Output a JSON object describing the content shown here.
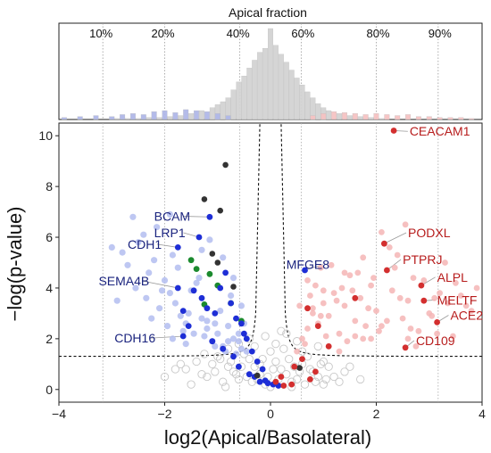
{
  "chart_data": [
    {
      "type": "bar",
      "title": "Apical fraction",
      "percent_labels": [
        {
          "label": "10%",
          "x": -3.17
        },
        {
          "label": "20%",
          "x": -2.0
        },
        {
          "label": "40%",
          "x": -0.58
        },
        {
          "label": "60%",
          "x": 0.58
        },
        {
          "label": "80%",
          "x": 2.0
        },
        {
          "label": "90%",
          "x": 3.17
        }
      ],
      "xlim": [
        -4,
        4
      ],
      "series": [
        {
          "name": "grey",
          "color": "#d3d3d3",
          "x": [
            -2.9,
            -2.7,
            -2.5,
            -2.3,
            -2.1,
            -1.9,
            -1.7,
            -1.5,
            -1.3,
            -1.1,
            -1.0,
            -0.9,
            -0.8,
            -0.7,
            -0.6,
            -0.5,
            -0.4,
            -0.3,
            -0.2,
            -0.1,
            0.0,
            0.1,
            0.2,
            0.3,
            0.4,
            0.5,
            0.6,
            0.7,
            0.8,
            0.9,
            1.0,
            1.1,
            1.3,
            1.5,
            1.7,
            1.9,
            2.1
          ],
          "values": [
            1,
            1,
            1,
            2,
            2,
            3,
            4,
            6,
            9,
            12,
            15,
            18,
            22,
            30,
            38,
            44,
            52,
            60,
            68,
            72,
            92,
            75,
            66,
            58,
            50,
            42,
            35,
            28,
            22,
            16,
            12,
            9,
            6,
            4,
            3,
            2,
            1
          ]
        },
        {
          "name": "blue",
          "color": "#b0b8e8",
          "x": [
            -3.9,
            -3.6,
            -3.3,
            -3.0,
            -2.8,
            -2.6,
            -2.4,
            -2.2,
            -2.0,
            -1.8,
            -1.6,
            -1.4,
            -1.2,
            -1.0,
            -0.8
          ],
          "values": [
            2,
            3,
            4,
            3,
            5,
            6,
            5,
            8,
            9,
            7,
            10,
            9,
            8,
            6,
            4
          ]
        },
        {
          "name": "pink",
          "color": "#f6c3c3",
          "x": [
            0.8,
            1.0,
            1.2,
            1.4,
            1.6,
            1.8,
            2.0,
            2.2,
            2.4,
            2.6,
            2.8,
            3.0,
            3.2,
            3.4,
            3.6,
            3.8
          ],
          "values": [
            4,
            6,
            8,
            7,
            6,
            5,
            6,
            5,
            4,
            5,
            3,
            3,
            2,
            2,
            2,
            1
          ]
        }
      ]
    },
    {
      "type": "scatter",
      "xlabel": "log2(Apical/Basolateral)",
      "ylabel": "−log(p-value)",
      "xlim": [
        -4,
        4
      ],
      "ylim": [
        -0.5,
        10.5
      ],
      "xticks": [
        -4,
        -2,
        0,
        2,
        4
      ],
      "yticks": [
        0,
        2,
        4,
        6,
        8,
        10
      ],
      "threshold_y": 1.3,
      "vlines_x": [
        -3.17,
        -2.0,
        -0.58,
        0.58,
        2.0,
        3.17
      ],
      "labels": [
        {
          "text": "CEACAM1",
          "color": "red",
          "x": 2.63,
          "y": 10.0,
          "px": 2.33,
          "py": 10.2
        },
        {
          "text": "PODXL",
          "color": "red",
          "x": 2.6,
          "y": 6.0,
          "px": 2.15,
          "py": 5.75
        },
        {
          "text": "PTPRJ",
          "color": "red",
          "x": 2.5,
          "y": 4.95,
          "px": 2.2,
          "py": 4.7
        },
        {
          "text": "ALPL",
          "color": "red",
          "x": 3.15,
          "y": 4.25,
          "px": 2.85,
          "py": 4.1
        },
        {
          "text": "MELTF",
          "color": "red",
          "x": 3.15,
          "y": 3.35,
          "px": 2.9,
          "py": 3.5
        },
        {
          "text": "ACE2",
          "color": "red",
          "x": 3.4,
          "y": 2.75,
          "px": 3.15,
          "py": 2.65
        },
        {
          "text": "CD109",
          "color": "red",
          "x": 2.75,
          "y": 1.75,
          "px": 2.55,
          "py": 1.65
        },
        {
          "text": "MFGE8",
          "color": "blue",
          "x": 0.3,
          "y": 4.75,
          "px": 0.65,
          "py": 4.7
        },
        {
          "text": "BCAM",
          "color": "blue",
          "x": -2.2,
          "y": 6.65,
          "px": -1.15,
          "py": 6.8
        },
        {
          "text": "LRP1",
          "color": "blue",
          "x": -2.2,
          "y": 6.0,
          "px": -1.35,
          "py": 6.0
        },
        {
          "text": "CDH1",
          "color": "blue",
          "x": -2.7,
          "y": 5.55,
          "px": -1.75,
          "py": 5.6
        },
        {
          "text": "SEMA4B",
          "color": "blue",
          "x": -3.25,
          "y": 4.1,
          "px": -1.75,
          "py": 4.0
        },
        {
          "text": "CDH16",
          "color": "blue",
          "x": -2.95,
          "y": 1.85,
          "px": -1.65,
          "py": 2.1
        }
      ],
      "series": [
        {
          "name": "red",
          "color": "#d32f2f",
          "x": [
            2.33,
            2.15,
            2.2,
            2.85,
            2.9,
            3.15,
            2.55,
            1.6,
            0.7,
            0.9,
            1.1,
            0.6,
            0.45,
            0.85,
            0.2,
            0.1,
            0.4,
            0.25,
            0.75
          ],
          "y": [
            10.2,
            5.75,
            4.7,
            4.1,
            3.5,
            2.65,
            1.65,
            3.6,
            3.2,
            2.5,
            1.7,
            1.2,
            0.9,
            0.7,
            0.5,
            0.3,
            0.2,
            0.15,
            0.4
          ]
        },
        {
          "name": "blue",
          "color": "#1e2ed6",
          "x": [
            -1.15,
            -1.35,
            -1.75,
            -1.65,
            -1.45,
            -1.3,
            -1.2,
            -1.05,
            -0.95,
            -0.85,
            -0.75,
            -0.65,
            -0.55,
            -0.5,
            -0.45,
            -0.35,
            -0.25,
            -0.15,
            0.65,
            -1.75,
            -1.65,
            -1.55,
            -1.1,
            -0.9,
            -0.7,
            -0.6,
            -0.4,
            -0.3,
            -0.2,
            0.05,
            -0.1,
            0.15,
            -0.05
          ],
          "y": [
            6.8,
            6.0,
            5.6,
            2.1,
            3.9,
            3.6,
            3.2,
            3.0,
            4.0,
            4.6,
            3.4,
            2.8,
            2.6,
            2.2,
            2.0,
            1.5,
            1.1,
            0.8,
            4.7,
            4.0,
            3.1,
            2.5,
            1.9,
            1.6,
            1.3,
            0.9,
            0.6,
            0.5,
            0.3,
            0.2,
            0.35,
            0.15,
            0.25
          ]
        },
        {
          "name": "green",
          "color": "#1b8a2e",
          "x": [
            -1.5,
            -1.4,
            -1.25,
            -1.15,
            -1.0,
            -0.75,
            -0.55
          ],
          "y": [
            5.1,
            4.75,
            3.35,
            4.55,
            4.1,
            3.4,
            2.7
          ]
        },
        {
          "name": "dark-grey",
          "color": "#333333",
          "x": [
            -0.85,
            -1.25,
            -0.95,
            -1.1,
            -1.0,
            -0.7,
            -0.25,
            0.55
          ],
          "y": [
            8.85,
            7.5,
            7.05,
            5.35,
            5.0,
            4.05,
            0.55,
            0.85
          ]
        },
        {
          "name": "light-blue",
          "color": "#b3bdf0",
          "x": [
            -3.0,
            -2.8,
            -2.6,
            -2.5,
            -2.3,
            -2.2,
            -2.0,
            -1.9,
            -1.8,
            -1.7,
            -1.6,
            -1.5,
            -1.4,
            -1.3,
            -1.2,
            -1.1,
            -1.0,
            -0.9,
            -0.8,
            -0.7,
            -0.6,
            -0.55,
            -2.7,
            -2.4,
            -2.1,
            -1.85,
            -1.55,
            -1.35,
            -1.25,
            -0.95,
            -0.85,
            -0.65,
            -2.9,
            -2.55,
            -2.25,
            -1.95,
            -1.65,
            -1.45,
            -1.05,
            -0.75,
            -2.15,
            -1.75,
            -1.15,
            -0.45,
            -0.5,
            -2.35,
            -1.85,
            -1.05,
            -0.6,
            -1.9,
            -2.05,
            -1.6,
            -1.3,
            -0.9,
            -0.7,
            -0.55,
            -1.2,
            -0.8
          ],
          "y": [
            5.6,
            5.4,
            6.8,
            5.8,
            4.6,
            5.1,
            4.3,
            3.8,
            3.4,
            2.9,
            2.6,
            3.9,
            4.2,
            2.8,
            2.4,
            1.9,
            2.2,
            1.7,
            2.5,
            2.0,
            1.9,
            1.6,
            4.9,
            6.1,
            3.2,
            5.3,
            3.0,
            4.4,
            2.1,
            3.1,
            1.5,
            1.4,
            3.5,
            4.0,
            2.8,
            2.5,
            2.3,
            2.2,
            2.6,
            3.7,
            6.4,
            4.8,
            5.9,
            1.5,
            2.6,
            3.6,
            2.0,
            1.7,
            2.2,
            6.9,
            3.9,
            1.8,
            5.5,
            5.2,
            4.4,
            3.3,
            2.7,
            1.9
          ]
        },
        {
          "name": "pink",
          "color": "#f5b5b5",
          "x": [
            0.5,
            0.6,
            0.7,
            0.8,
            0.9,
            1.0,
            1.1,
            1.2,
            1.3,
            1.4,
            1.5,
            1.6,
            1.7,
            1.8,
            1.9,
            2.0,
            2.1,
            2.3,
            2.4,
            2.5,
            2.6,
            2.7,
            2.8,
            3.0,
            3.2,
            3.3,
            3.5,
            3.7,
            3.9,
            0.65,
            0.75,
            0.85,
            0.95,
            1.05,
            1.15,
            1.25,
            1.35,
            1.45,
            1.55,
            1.65,
            1.75,
            1.85,
            1.95,
            2.05,
            2.2,
            2.45,
            2.65,
            3.05,
            3.35,
            3.6,
            0.55,
            1.1,
            1.6,
            2.25,
            2.9,
            3.45,
            0.95,
            1.75,
            2.55,
            3.15,
            1.4,
            2.1,
            0.8,
            1.9,
            2.35,
            3.8,
            2.75,
            1.3,
            0.7,
            2.6,
            3.1,
            1.0
          ],
          "y": [
            1.5,
            2.0,
            2.4,
            3.0,
            2.6,
            3.4,
            2.9,
            3.8,
            2.2,
            3.3,
            4.5,
            2.7,
            3.6,
            2.5,
            4.1,
            3.1,
            6.2,
            3.9,
            5.3,
            2.8,
            3.5,
            4.4,
            2.3,
            3.0,
            3.8,
            5.0,
            4.2,
            3.3,
            4.0,
            1.8,
            3.7,
            4.1,
            4.8,
            2.1,
            4.9,
            3.5,
            4.0,
            1.9,
            3.9,
            4.6,
            2.0,
            3.2,
            4.4,
            2.3,
            2.7,
            3.6,
            2.4,
            2.9,
            3.4,
            3.7,
            3.3,
            1.7,
            2.1,
            5.6,
            4.3,
            2.1,
            2.9,
            5.2,
            6.5,
            2.2,
            4.6,
            2.5,
            3.2,
            2.0,
            4.8,
            3.1,
            1.7,
            1.5,
            4.3,
            2.0,
            3.6,
            3.9
          ]
        },
        {
          "name": "grey",
          "color": "#c8c8c8",
          "x": [
            -1.6,
            -1.4,
            -1.2,
            -1.0,
            -0.8,
            -0.6,
            -0.4,
            -0.2,
            0.0,
            0.2,
            0.4,
            0.6,
            0.8,
            1.0,
            1.2,
            -1.5,
            -1.3,
            -1.1,
            -0.9,
            -0.7,
            -0.5,
            -0.3,
            -0.1,
            0.1,
            0.3,
            0.5,
            0.7,
            0.9,
            1.1,
            1.4,
            -1.7,
            -0.85,
            -0.45,
            -0.15,
            0.15,
            0.45,
            0.85,
            -1.25,
            -0.65,
            -0.35,
            0.05,
            0.35,
            0.65,
            1.05,
            -0.95,
            -0.55,
            -0.25,
            0.25,
            0.55,
            0.95,
            -0.75,
            -0.05,
            0.75,
            1.3,
            -1.05,
            0.4,
            -0.3,
            0.1,
            0.6,
            -0.6,
            -2.0,
            -1.8,
            1.5,
            1.7,
            0.9,
            -0.1,
            0.2,
            0.5,
            -0.4,
            -0.8,
            0.3,
            -0.2,
            0.0,
            1.0
          ],
          "y": [
            0.8,
            1.1,
            0.5,
            1.3,
            0.9,
            0.4,
            1.2,
            0.6,
            1.5,
            0.8,
            0.3,
            1.0,
            0.7,
            1.1,
            0.5,
            0.2,
            0.6,
            1.0,
            0.3,
            0.7,
            1.4,
            0.9,
            0.2,
            1.1,
            0.6,
            0.4,
            1.3,
            0.5,
            0.9,
            0.7,
            1.0,
            0.1,
            0.5,
            1.2,
            0.4,
            0.9,
            0.3,
            1.4,
            0.6,
            0.3,
            0.8,
            1.2,
            0.2,
            0.4,
            1.2,
            0.9,
            0.4,
            1.6,
            0.7,
            1.0,
            1.1,
            0.5,
            0.8,
            0.3,
            0.7,
            0.1,
            1.7,
            1.8,
            1.5,
            1.8,
            0.5,
            0.8,
            0.9,
            0.4,
            1.7,
            2.1,
            2.3,
            1.9,
            2.0,
            1.6,
            2.2,
            1.0,
            0.1,
            0.2
          ]
        }
      ]
    }
  ]
}
